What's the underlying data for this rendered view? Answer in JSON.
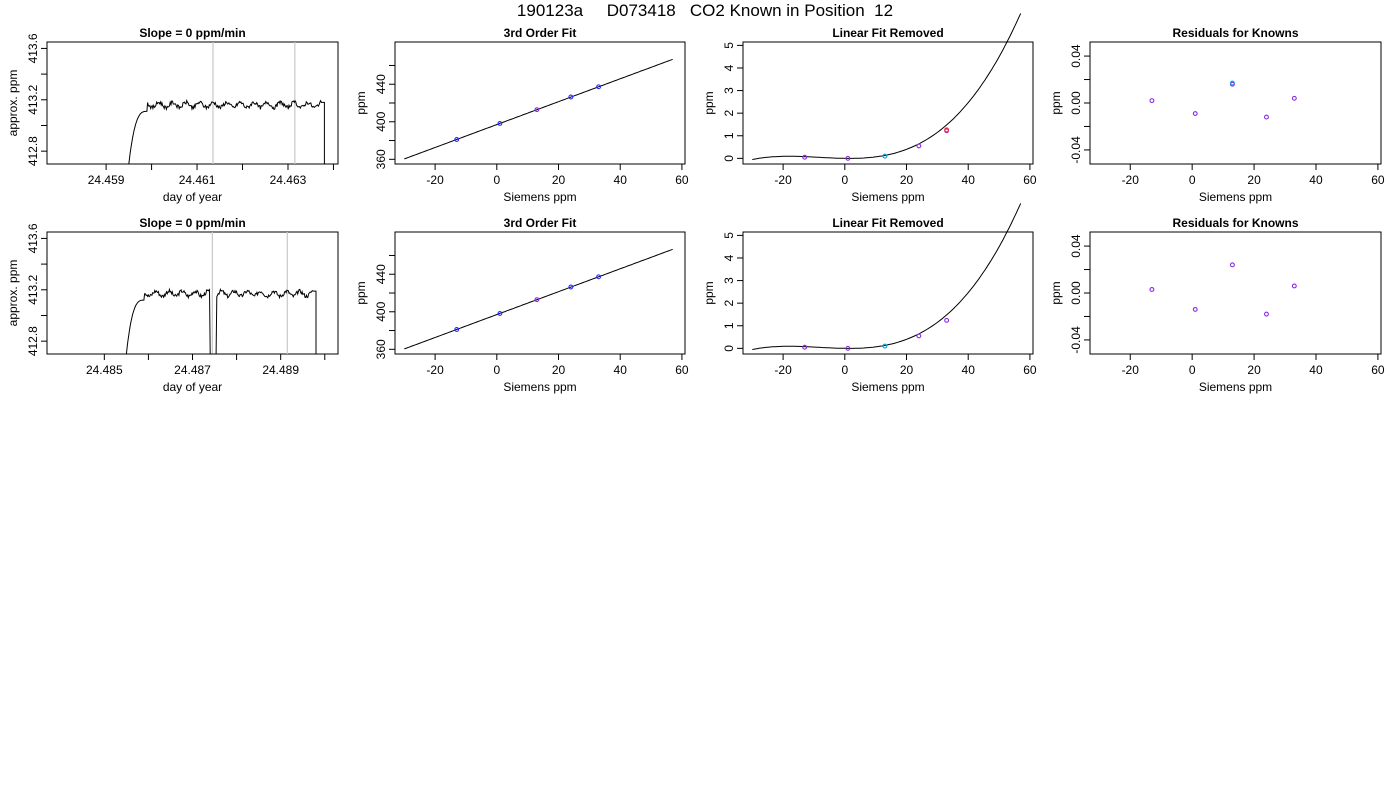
{
  "page": {
    "title": "190123a     D073418   CO2 Known in Position  12"
  },
  "colors": {
    "line": "#000000",
    "vline": "#c8c8c8",
    "point_blue": "#2a2aff",
    "point_violet": "#8a2be2",
    "point_cyan": "#00a0e0",
    "point_red": "#ff3030"
  },
  "chart_data": [
    {
      "id": "r1_trace",
      "type": "line",
      "title": "Slope =  0  ppm/min",
      "xlabel": "day of year",
      "ylabel": "approx. ppm",
      "xlim": [
        24.4577,
        24.4641
      ],
      "ylim": [
        412.7,
        413.65
      ],
      "xticks": [
        24.459,
        24.46,
        24.461,
        24.462,
        24.463,
        24.464
      ],
      "xtick_labels": [
        "24.459",
        "",
        "24.461",
        "",
        "24.463",
        ""
      ],
      "yticks": [
        412.8,
        413.0,
        413.2,
        413.4,
        413.6
      ],
      "ytick_labels": [
        "412.8",
        "",
        "413.2",
        "",
        "413.6"
      ],
      "vlines": [
        24.46135,
        24.46315
      ],
      "trace": {
        "start": 24.4595,
        "rise_end": 24.4599,
        "end": 24.4638,
        "level": 413.16,
        "edge_low": 412.7
      }
    },
    {
      "id": "r1_fit",
      "type": "line",
      "title": "3rd Order Fit",
      "xlabel": "Siemens ppm",
      "ylabel": "ppm",
      "xlim": [
        -33,
        61
      ],
      "ylim": [
        355,
        485
      ],
      "xticks": [
        -20,
        0,
        20,
        40,
        60
      ],
      "xtick_labels": [
        "-20",
        "0",
        "20",
        "40",
        "60"
      ],
      "yticks": [
        360,
        380,
        400,
        420,
        440,
        460
      ],
      "ytick_labels": [
        "360",
        "",
        "400",
        "",
        "440",
        ""
      ],
      "curve": {
        "x0": -30,
        "x1": 57,
        "slope": 1.22,
        "intercept": 397
      },
      "points": [
        {
          "x": -13,
          "y": 381.1,
          "c": "blue"
        },
        {
          "x": 1,
          "y": 398.2,
          "c": "blue"
        },
        {
          "x": 13,
          "y": 412.9,
          "c": "violet"
        },
        {
          "x": 24,
          "y": 426.4,
          "c": "blue"
        },
        {
          "x": 33,
          "y": 437.3,
          "c": "blue"
        }
      ]
    },
    {
      "id": "r1_lin",
      "type": "line",
      "title": "Linear Fit Removed",
      "xlabel": "Siemens ppm",
      "ylabel": "ppm",
      "xlim": [
        -33,
        61
      ],
      "ylim": [
        -0.25,
        5.15
      ],
      "xticks": [
        -20,
        0,
        20,
        40,
        60
      ],
      "xtick_labels": [
        "-20",
        "0",
        "20",
        "40",
        "60"
      ],
      "yticks": [
        0,
        1,
        2,
        3,
        4,
        5
      ],
      "ytick_labels": [
        "0",
        "1",
        "2",
        "3",
        "4",
        "5"
      ],
      "curve": {
        "x0": -30,
        "x1": 57,
        "cubic": [
          0.0058,
          0.0165,
          0.00011,
          -0.07
        ]
      },
      "points": [
        {
          "x": -13,
          "y": 0.05,
          "c": "violet"
        },
        {
          "x": 1,
          "y": 0.0,
          "c": "violet"
        },
        {
          "x": 13,
          "y": 0.1,
          "c": "cyan"
        },
        {
          "x": 24,
          "y": 0.55,
          "c": "violet"
        },
        {
          "x": 33,
          "y": 1.22,
          "c": "violet"
        },
        {
          "x": 33,
          "y": 1.26,
          "c": "red"
        }
      ]
    },
    {
      "id": "r1_res",
      "type": "scatter",
      "title": "Residuals for Knowns",
      "xlabel": "Siemens ppm",
      "ylabel": "ppm",
      "xlim": [
        -33,
        61
      ],
      "ylim": [
        -0.052,
        0.052
      ],
      "xticks": [
        -20,
        0,
        20,
        40,
        60
      ],
      "xtick_labels": [
        "-20",
        "0",
        "20",
        "40",
        "60"
      ],
      "yticks": [
        -0.04,
        -0.02,
        0.0,
        0.02,
        0.04
      ],
      "ytick_labels": [
        "-0.04",
        "",
        "0.00",
        "",
        "0.04"
      ],
      "points": [
        {
          "x": -13,
          "y": 0.002,
          "c": "violet"
        },
        {
          "x": 1,
          "y": -0.009,
          "c": "violet"
        },
        {
          "x": 13,
          "y": 0.016,
          "c": "violet"
        },
        {
          "x": 13,
          "y": 0.017,
          "c": "cyan"
        },
        {
          "x": 24,
          "y": -0.012,
          "c": "violet"
        },
        {
          "x": 33,
          "y": 0.004,
          "c": "violet"
        }
      ]
    },
    {
      "id": "r2_trace",
      "type": "line",
      "title": "Slope =  0  ppm/min",
      "xlabel": "day of year",
      "ylabel": "approx. ppm",
      "xlim": [
        24.4837,
        24.4903
      ],
      "ylim": [
        412.7,
        413.65
      ],
      "xticks": [
        24.485,
        24.486,
        24.487,
        24.488,
        24.489,
        24.49
      ],
      "xtick_labels": [
        "24.485",
        "",
        "24.487",
        "",
        "24.489",
        ""
      ],
      "yticks": [
        412.8,
        413.0,
        413.2,
        413.4,
        413.6
      ],
      "ytick_labels": [
        "412.8",
        "",
        "413.2",
        "",
        "413.6"
      ],
      "vlines": [
        24.48745,
        24.48915
      ],
      "trace": {
        "start": 24.4855,
        "rise_end": 24.4859,
        "end": 24.4898,
        "level": 413.17,
        "edge_low": 412.7,
        "dip": [
          24.4874,
          24.48755
        ]
      }
    },
    {
      "id": "r2_fit",
      "type": "line",
      "title": "3rd Order Fit",
      "xlabel": "Siemens ppm",
      "ylabel": "ppm",
      "xlim": [
        -33,
        61
      ],
      "ylim": [
        355,
        485
      ],
      "xticks": [
        -20,
        0,
        20,
        40,
        60
      ],
      "xtick_labels": [
        "-20",
        "0",
        "20",
        "40",
        "60"
      ],
      "yticks": [
        360,
        380,
        400,
        420,
        440,
        460
      ],
      "ytick_labels": [
        "360",
        "",
        "400",
        "",
        "440",
        ""
      ],
      "curve": {
        "x0": -30,
        "x1": 57,
        "slope": 1.22,
        "intercept": 397
      },
      "points": [
        {
          "x": -13,
          "y": 381.1,
          "c": "blue"
        },
        {
          "x": 1,
          "y": 398.2,
          "c": "blue"
        },
        {
          "x": 13,
          "y": 412.9,
          "c": "violet"
        },
        {
          "x": 24,
          "y": 426.4,
          "c": "blue"
        },
        {
          "x": 33,
          "y": 437.3,
          "c": "blue"
        }
      ]
    },
    {
      "id": "r2_lin",
      "type": "line",
      "title": "Linear Fit Removed",
      "xlabel": "Siemens ppm",
      "ylabel": "ppm",
      "xlim": [
        -33,
        61
      ],
      "ylim": [
        -0.25,
        5.15
      ],
      "xticks": [
        -20,
        0,
        20,
        40,
        60
      ],
      "xtick_labels": [
        "-20",
        "0",
        "20",
        "40",
        "60"
      ],
      "yticks": [
        0,
        1,
        2,
        3,
        4,
        5
      ],
      "ytick_labels": [
        "0",
        "1",
        "2",
        "3",
        "4",
        "5"
      ],
      "curve": {
        "x0": -30,
        "x1": 57,
        "cubic": [
          0.0058,
          0.0165,
          0.00011,
          -0.07
        ]
      },
      "points": [
        {
          "x": -13,
          "y": 0.05,
          "c": "violet"
        },
        {
          "x": 1,
          "y": 0.0,
          "c": "violet"
        },
        {
          "x": 13,
          "y": 0.1,
          "c": "cyan"
        },
        {
          "x": 24,
          "y": 0.55,
          "c": "violet"
        },
        {
          "x": 33,
          "y": 1.24,
          "c": "violet"
        }
      ]
    },
    {
      "id": "r2_res",
      "type": "scatter",
      "title": "Residuals for Knowns",
      "xlabel": "Siemens ppm",
      "ylabel": "ppm",
      "xlim": [
        -33,
        61
      ],
      "ylim": [
        -0.052,
        0.052
      ],
      "xticks": [
        -20,
        0,
        20,
        40,
        60
      ],
      "xtick_labels": [
        "-20",
        "0",
        "20",
        "40",
        "60"
      ],
      "yticks": [
        -0.04,
        -0.02,
        0.0,
        0.02,
        0.04
      ],
      "ytick_labels": [
        "-0.04",
        "",
        "0.00",
        "",
        "0.04"
      ],
      "points": [
        {
          "x": -13,
          "y": 0.003,
          "c": "violet"
        },
        {
          "x": 1,
          "y": -0.014,
          "c": "violet"
        },
        {
          "x": 13,
          "y": 0.024,
          "c": "violet"
        },
        {
          "x": 24,
          "y": -0.018,
          "c": "violet"
        },
        {
          "x": 33,
          "y": 0.006,
          "c": "violet"
        }
      ]
    }
  ]
}
